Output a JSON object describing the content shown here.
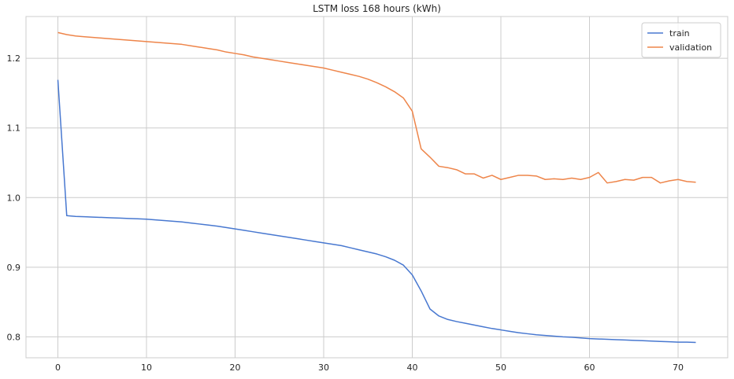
{
  "chart_data": {
    "type": "line",
    "title": "LSTM loss 168 hours (kWh)",
    "xlabel": "",
    "ylabel": "",
    "xlim": [
      -3.6,
      75.6
    ],
    "ylim": [
      0.77,
      1.26
    ],
    "xticks": [
      0,
      10,
      20,
      30,
      40,
      50,
      60,
      70
    ],
    "yticks": [
      0.8,
      0.9,
      1.0,
      1.1,
      1.2
    ],
    "ytick_labels": [
      "0.8",
      "0.9",
      "1.0",
      "1.1",
      "1.2"
    ],
    "grid": true,
    "legend_position": "top-right",
    "x": [
      0,
      1,
      2,
      3,
      4,
      5,
      6,
      7,
      8,
      9,
      10,
      11,
      12,
      13,
      14,
      15,
      16,
      17,
      18,
      19,
      20,
      21,
      22,
      23,
      24,
      25,
      26,
      27,
      28,
      29,
      30,
      31,
      32,
      33,
      34,
      35,
      36,
      37,
      38,
      39,
      40,
      41,
      42,
      43,
      44,
      45,
      46,
      47,
      48,
      49,
      50,
      51,
      52,
      53,
      54,
      55,
      56,
      57,
      58,
      59,
      60,
      61,
      62,
      63,
      64,
      65,
      66,
      67,
      68,
      69,
      70,
      71,
      72
    ],
    "series": [
      {
        "name": "train",
        "color": "#4878d0",
        "values": [
          1.169,
          0.974,
          0.973,
          0.9725,
          0.972,
          0.9715,
          0.971,
          0.9705,
          0.97,
          0.9695,
          0.969,
          0.968,
          0.967,
          0.966,
          0.965,
          0.9635,
          0.962,
          0.9605,
          0.959,
          0.957,
          0.955,
          0.953,
          0.951,
          0.949,
          0.947,
          0.945,
          0.943,
          0.941,
          0.939,
          0.937,
          0.935,
          0.933,
          0.931,
          0.928,
          0.925,
          0.922,
          0.919,
          0.915,
          0.91,
          0.903,
          0.889,
          0.866,
          0.84,
          0.83,
          0.825,
          0.822,
          0.8195,
          0.817,
          0.8145,
          0.812,
          0.81,
          0.808,
          0.806,
          0.8045,
          0.803,
          0.802,
          0.801,
          0.8,
          0.7995,
          0.7985,
          0.7975,
          0.797,
          0.7965,
          0.796,
          0.7955,
          0.795,
          0.7945,
          0.794,
          0.7935,
          0.793,
          0.7925,
          0.7925,
          0.792
        ]
      },
      {
        "name": "validation",
        "color": "#ee854a",
        "values": [
          1.237,
          1.234,
          1.232,
          1.231,
          1.23,
          1.229,
          1.228,
          1.227,
          1.226,
          1.225,
          1.224,
          1.223,
          1.222,
          1.221,
          1.22,
          1.218,
          1.216,
          1.214,
          1.212,
          1.209,
          1.207,
          1.205,
          1.202,
          1.2,
          1.198,
          1.196,
          1.194,
          1.192,
          1.19,
          1.188,
          1.186,
          1.183,
          1.18,
          1.177,
          1.174,
          1.17,
          1.165,
          1.159,
          1.152,
          1.143,
          1.124,
          1.07,
          1.058,
          1.045,
          1.043,
          1.04,
          1.034,
          1.034,
          1.028,
          1.032,
          1.026,
          1.029,
          1.032,
          1.032,
          1.031,
          1.026,
          1.027,
          1.026,
          1.028,
          1.026,
          1.029,
          1.036,
          1.021,
          1.023,
          1.026,
          1.025,
          1.029,
          1.029,
          1.021,
          1.024,
          1.026,
          1.023,
          1.022
        ]
      }
    ]
  }
}
